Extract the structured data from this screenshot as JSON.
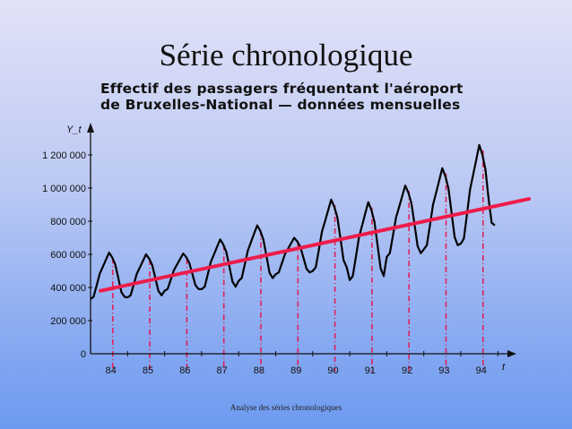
{
  "slide": {
    "title": "Série chronologique",
    "subtitle_line1": "Effectif des passagers fréquentant l'aéroport",
    "subtitle_line2": "de Bruxelles-National — données mensuelles",
    "footer": "Analyse des séries chronologiques"
  },
  "chart_data": {
    "type": "line",
    "title": "Effectif des passagers fréquentant l'aéroport de Bruxelles-National — données mensuelles",
    "ylabel": "Y_t",
    "xlabel": "t",
    "ylim": [
      0,
      1300000
    ],
    "xlim": [
      1984,
      1995.9
    ],
    "yticks": [
      0,
      200000,
      400000,
      600000,
      800000,
      1000000,
      1200000
    ],
    "ytick_labels": [
      "0",
      "200 000",
      "400 000",
      "600 000",
      "800 000",
      "1 000 000",
      "1 200 000"
    ],
    "xtick_labels": [
      "84",
      "85",
      "86",
      "87",
      "88",
      "89",
      "90",
      "91",
      "92",
      "93",
      "94"
    ],
    "grid": false,
    "colors": {
      "series": "#000000",
      "trend": "#ee1c4a",
      "year_markers": "#e0205a"
    },
    "monthly_passengers": {
      "1984": [
        330000,
        344000,
        414000,
        484000,
        526000,
        568000,
        610000,
        582000,
        540000,
        456000,
        372000,
        344000
      ],
      "1985": [
        340000,
        353000,
        418000,
        483000,
        522000,
        561000,
        600000,
        574000,
        535000,
        457000,
        379000,
        353000
      ],
      "1986": [
        380000,
        391000,
        448000,
        504000,
        538000,
        571000,
        605000,
        583000,
        549000,
        481000,
        414000,
        391000
      ],
      "1987": [
        390000,
        405000,
        480000,
        555000,
        600000,
        645000,
        690000,
        660000,
        615000,
        525000,
        435000,
        405000
      ],
      "1988": [
        440000,
        457000,
        541000,
        624000,
        675000,
        725000,
        775000,
        742000,
        691000,
        591000,
        490000,
        457000
      ],
      "1989": [
        480000,
        491000,
        546000,
        601000,
        634000,
        667000,
        700000,
        678000,
        645000,
        579000,
        513000,
        491000
      ],
      "1990": [
        500000,
        522000,
        629000,
        737000,
        801000,
        866000,
        930000,
        887000,
        823000,
        694000,
        565000,
        522000
      ],
      "1991": [
        445000,
        469000,
        586000,
        704000,
        774000,
        845000,
        915000,
        868000,
        798000,
        657000,
        516000,
        469000
      ],
      "1992": [
        585000,
        607000,
        714000,
        822000,
        886000,
        951000,
        1015000,
        972000,
        908000,
        779000,
        650000,
        607000
      ],
      "1993": [
        630000,
        655000,
        777000,
        900000,
        973000,
        1047000,
        1120000,
        1071000,
        998000,
        851000,
        704000,
        655000
      ],
      "1994": [
        665000,
        695000,
        844000,
        992000,
        1082000,
        1171000,
        1260000,
        1201000,
        1111000,
        933000,
        790000,
        775000
      ]
    },
    "trend_line": {
      "from": [
        1984.27,
        380000
      ],
      "to": [
        1995.84,
        935000
      ]
    }
  }
}
